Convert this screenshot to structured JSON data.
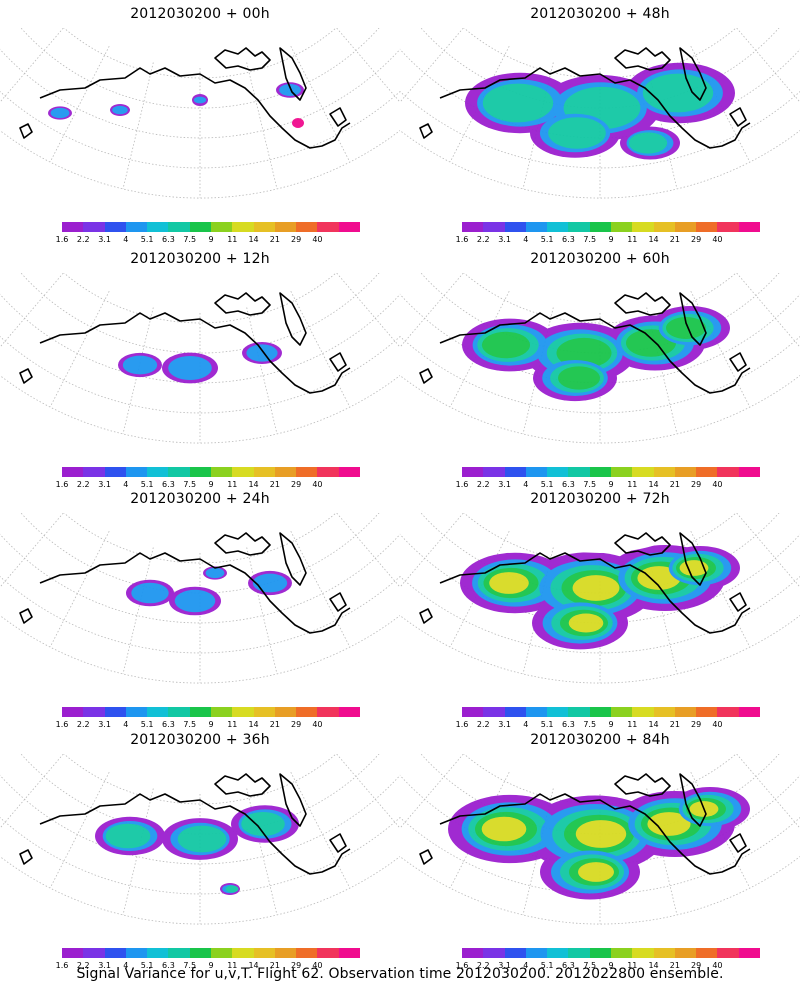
{
  "caption": "Signal Variance for u,v,T. Flight 62. Observation time 2012030200. 2012022800 ensemble.",
  "colorbar": {
    "colors": [
      "#9b1fcf",
      "#7a33e6",
      "#2f52ef",
      "#1e96f0",
      "#11c0d6",
      "#12c8a4",
      "#19c44a",
      "#8bd11f",
      "#d7db22",
      "#e6c025",
      "#e89e25",
      "#ef6d28",
      "#f1345c",
      "#f00c8e"
    ],
    "ticks": [
      "1.6",
      "2.2",
      "3.1",
      "4",
      "5.1",
      "6.3",
      "7.5",
      "9",
      "11",
      "14",
      "21",
      "29",
      "40"
    ]
  },
  "panels": [
    {
      "title": "2012030200  +  00h",
      "level": 0.1,
      "peak": "magenta-spot"
    },
    {
      "title": "2012030200  +  48h",
      "level": 0.45
    },
    {
      "title": "2012030200  +  12h",
      "level": 0.2
    },
    {
      "title": "2012030200  +  60h",
      "level": 0.55
    },
    {
      "title": "2012030200  +  24h",
      "level": 0.25
    },
    {
      "title": "2012030200  +  72h",
      "level": 0.7
    },
    {
      "title": "2012030200  +  36h",
      "level": 0.35
    },
    {
      "title": "2012030200  +  84h",
      "level": 0.8
    }
  ]
}
